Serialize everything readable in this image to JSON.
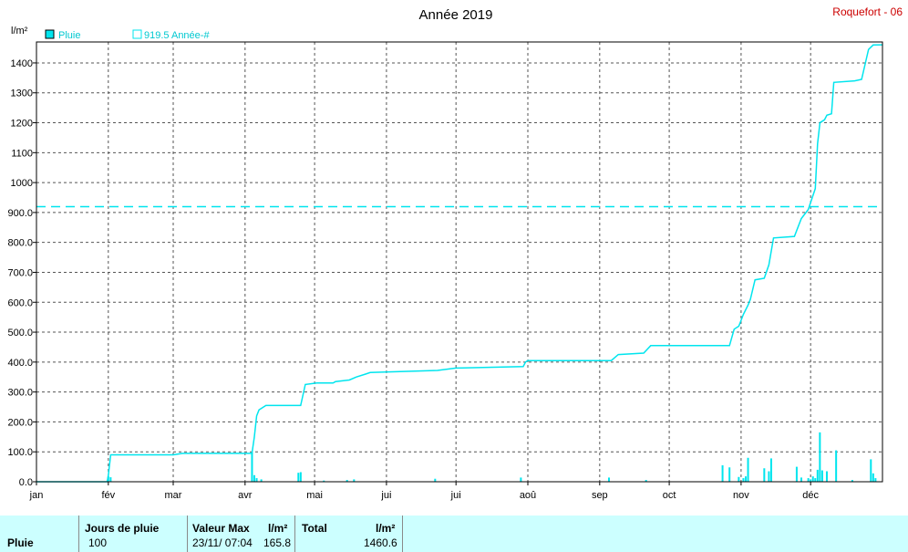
{
  "colors": {
    "series": "#00e5ee",
    "grid": "#555555",
    "axis": "#000000",
    "station": "#cc0000",
    "panel": "#ccffff"
  },
  "chart_data": {
    "type": "line",
    "title": "Année 2019",
    "station": "Roquefort - 06",
    "ylabel": "l/m²",
    "ylim": [
      0,
      1470
    ],
    "yticks": [
      0.0,
      100.0,
      200.0,
      300.0,
      400.0,
      500.0,
      600.0,
      700.0,
      800.0,
      900.0,
      1000,
      1100,
      1200,
      1300,
      1400
    ],
    "ytick_labels": [
      "0.0",
      "100.0",
      "200.0",
      "300.0",
      "400.0",
      "500.0",
      "600.0",
      "700.0",
      "800.0",
      "900.0",
      "1000",
      "1100",
      "1200",
      "1300",
      "1400"
    ],
    "months": [
      "jan",
      "fév",
      "mar",
      "avr",
      "mai",
      "jui",
      "jui",
      "aoû",
      "sep",
      "oct",
      "nov",
      "déc"
    ],
    "grid": true,
    "legend": [
      {
        "label": "Pluie",
        "marker": "filled-square"
      },
      {
        "label": "919.5 Année-#",
        "marker": "open-square"
      }
    ],
    "reference_line": {
      "name": "919.5 Année-#",
      "value": 919.5
    },
    "cumulative_series": {
      "name": "Pluie",
      "points": [
        [
          0,
          0
        ],
        [
          30.5,
          0
        ],
        [
          31,
          20
        ],
        [
          32,
          90
        ],
        [
          59,
          90
        ],
        [
          63,
          95
        ],
        [
          93,
          95
        ],
        [
          94,
          150
        ],
        [
          95,
          220
        ],
        [
          96,
          240
        ],
        [
          99,
          255
        ],
        [
          114,
          255
        ],
        [
          116,
          325
        ],
        [
          121,
          330
        ],
        [
          128,
          330
        ],
        [
          129,
          335
        ],
        [
          135,
          340
        ],
        [
          138,
          350
        ],
        [
          142,
          360
        ],
        [
          144,
          365
        ],
        [
          173,
          372
        ],
        [
          181,
          380
        ],
        [
          210,
          385
        ],
        [
          211,
          400
        ],
        [
          212,
          405
        ],
        [
          248,
          405
        ],
        [
          251,
          425
        ],
        [
          262,
          430
        ],
        [
          265,
          455
        ],
        [
          299,
          455
        ],
        [
          301,
          510
        ],
        [
          303,
          520
        ],
        [
          305,
          560
        ],
        [
          307,
          590
        ],
        [
          308,
          610
        ],
        [
          310,
          675
        ],
        [
          314,
          680
        ],
        [
          316,
          725
        ],
        [
          318,
          815
        ],
        [
          327,
          820
        ],
        [
          330,
          880
        ],
        [
          333,
          910
        ],
        [
          336,
          980
        ],
        [
          337,
          1130
        ],
        [
          338,
          1200
        ],
        [
          340,
          1210
        ],
        [
          341,
          1225
        ],
        [
          343,
          1230
        ],
        [
          344,
          1335
        ],
        [
          353,
          1340
        ],
        [
          356,
          1345
        ],
        [
          359,
          1445
        ],
        [
          361,
          1460
        ],
        [
          365,
          1460.6
        ]
      ]
    },
    "daily_bars": {
      "name": "Pluie",
      "points": [
        [
          31,
          18
        ],
        [
          32,
          15
        ],
        [
          93,
          98
        ],
        [
          94,
          22
        ],
        [
          95,
          12
        ],
        [
          97,
          8
        ],
        [
          113,
          30
        ],
        [
          114,
          32
        ],
        [
          124,
          4
        ],
        [
          134,
          6
        ],
        [
          137,
          8
        ],
        [
          172,
          10
        ],
        [
          209,
          14
        ],
        [
          247,
          14
        ],
        [
          263,
          6
        ],
        [
          296,
          55
        ],
        [
          299,
          48
        ],
        [
          303,
          16
        ],
        [
          305,
          12
        ],
        [
          306,
          18
        ],
        [
          307,
          80
        ],
        [
          314,
          45
        ],
        [
          316,
          35
        ],
        [
          317,
          78
        ],
        [
          328,
          50
        ],
        [
          330,
          14
        ],
        [
          333,
          12
        ],
        [
          334,
          8
        ],
        [
          335,
          18
        ],
        [
          336,
          12
        ],
        [
          337,
          40
        ],
        [
          338,
          165
        ],
        [
          339,
          38
        ],
        [
          341,
          35
        ],
        [
          345,
          105
        ],
        [
          352,
          6
        ],
        [
          360,
          75
        ],
        [
          361,
          28
        ],
        [
          362,
          12
        ]
      ]
    }
  },
  "summary": {
    "row_label": "Pluie",
    "jours_label": "Jours de pluie",
    "jours_value": "100",
    "valeur_max_label": "Valeur Max",
    "valeur_max_unit": "l/m²",
    "valeur_max_date": "23/11/  07:04",
    "valeur_max_value": "165.8",
    "total_label": "Total",
    "total_unit": "l/m²",
    "total_value": "1460.6"
  }
}
